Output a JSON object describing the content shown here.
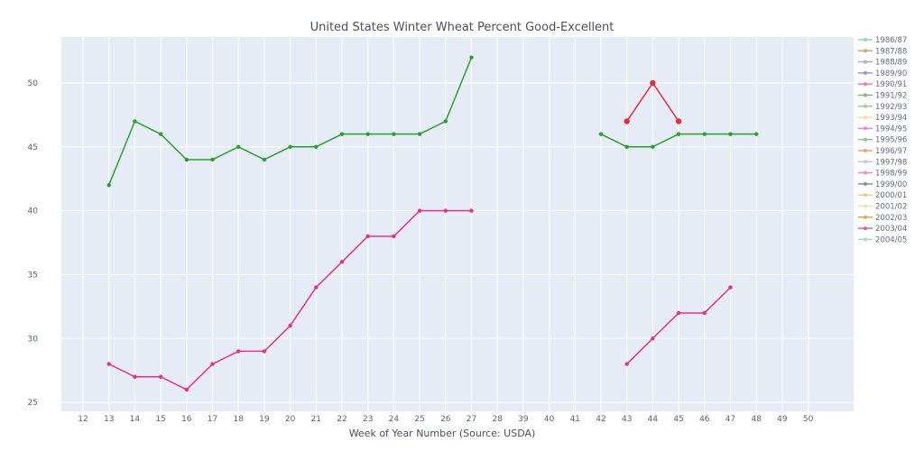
{
  "chart_data": {
    "type": "line",
    "title": "United States Winter Wheat Percent Good-Excellent",
    "xlabel": "Week of Year Number     (Source: USDA)",
    "ylabel": "",
    "x_categories": [
      "12",
      "13",
      "14",
      "15",
      "16",
      "17",
      "18",
      "19",
      "20",
      "21",
      "22",
      "23",
      "24",
      "25",
      "26",
      "27",
      "28",
      "39",
      "40",
      "41",
      "42",
      "43",
      "44",
      "45",
      "46",
      "47",
      "48",
      "49",
      "50"
    ],
    "ylim": [
      24.3,
      53.6
    ],
    "yticks": [
      25,
      30,
      35,
      40,
      45,
      50
    ],
    "grid": true,
    "legend": {
      "placement": "right",
      "entries": [
        {
          "name": "1986/87",
          "color": "#8fd3c8"
        },
        {
          "name": "1987/88",
          "color": "#d9a36b"
        },
        {
          "name": "1988/89",
          "color": "#b0a8d8"
        },
        {
          "name": "1989/90",
          "color": "#8f9bd0"
        },
        {
          "name": "1990/91",
          "color": "#e57aa8"
        },
        {
          "name": "1991/92",
          "color": "#7dbb6f"
        },
        {
          "name": "1992/93",
          "color": "#9ed08f"
        },
        {
          "name": "1993/94",
          "color": "#f3dfa2"
        },
        {
          "name": "1994/95",
          "color": "#d88ad8"
        },
        {
          "name": "1995/96",
          "color": "#88c888"
        },
        {
          "name": "1996/97",
          "color": "#f0a070"
        },
        {
          "name": "1997/98",
          "color": "#c9c0e8"
        },
        {
          "name": "1998/99",
          "color": "#e890c0"
        },
        {
          "name": "1999/00",
          "color": "#7f8fb8"
        },
        {
          "name": "2000/01",
          "color": "#f0c888"
        },
        {
          "name": "2001/02",
          "color": "#f0e0b0"
        },
        {
          "name": "2002/03",
          "color": "#d8a850"
        },
        {
          "name": "2003/04",
          "color": "#e06090"
        },
        {
          "name": "2004/05",
          "color": "#a8d8d0"
        }
      ]
    },
    "series": [
      {
        "name": "1991/92",
        "color": "#2ca02c",
        "points": [
          {
            "x": "13",
            "y": 42
          },
          {
            "x": "14",
            "y": 47
          },
          {
            "x": "15",
            "y": 46
          },
          {
            "x": "16",
            "y": 44
          },
          {
            "x": "17",
            "y": 44
          },
          {
            "x": "18",
            "y": 45
          },
          {
            "x": "19",
            "y": 44
          },
          {
            "x": "20",
            "y": 45
          },
          {
            "x": "21",
            "y": 45
          },
          {
            "x": "22",
            "y": 46
          },
          {
            "x": "23",
            "y": 46
          },
          {
            "x": "24",
            "y": 46
          },
          {
            "x": "25",
            "y": 46
          },
          {
            "x": "26",
            "y": 47
          },
          {
            "x": "27",
            "y": 52
          },
          {
            "x": "28",
            "y": null
          },
          {
            "x": "39",
            "y": null
          },
          {
            "x": "40",
            "y": null
          },
          {
            "x": "41",
            "y": null
          },
          {
            "x": "42",
            "y": 46
          },
          {
            "x": "43",
            "y": 45
          },
          {
            "x": "44",
            "y": 45
          },
          {
            "x": "45",
            "y": 46
          },
          {
            "x": "46",
            "y": 46
          },
          {
            "x": "47",
            "y": 46
          },
          {
            "x": "48",
            "y": 46
          }
        ],
        "marker_size": 2.2
      },
      {
        "name": "2003/04",
        "color": "#e8308a",
        "points": [
          {
            "x": "13",
            "y": 28
          },
          {
            "x": "14",
            "y": 27
          },
          {
            "x": "15",
            "y": 27
          },
          {
            "x": "16",
            "y": 26
          },
          {
            "x": "17",
            "y": 28
          },
          {
            "x": "18",
            "y": 29
          },
          {
            "x": "19",
            "y": 29
          },
          {
            "x": "20",
            "y": 31
          },
          {
            "x": "21",
            "y": 34
          },
          {
            "x": "22",
            "y": 36
          },
          {
            "x": "23",
            "y": 38
          },
          {
            "x": "24",
            "y": 38
          },
          {
            "x": "25",
            "y": 40
          },
          {
            "x": "26",
            "y": 40
          },
          {
            "x": "27",
            "y": 40
          },
          {
            "x": "28",
            "y": null
          },
          {
            "x": "39",
            "y": null
          },
          {
            "x": "40",
            "y": null
          },
          {
            "x": "41",
            "y": null
          },
          {
            "x": "42",
            "y": null
          },
          {
            "x": "43",
            "y": 28
          },
          {
            "x": "44",
            "y": 30
          },
          {
            "x": "45",
            "y": 32
          },
          {
            "x": "46",
            "y": 32
          },
          {
            "x": "47",
            "y": 34
          }
        ],
        "marker_size": 2.2
      },
      {
        "name": "",
        "color": "#ee2a3a",
        "points": [
          {
            "x": "43",
            "y": 47
          },
          {
            "x": "44",
            "y": 50
          },
          {
            "x": "45",
            "y": 47
          }
        ],
        "marker_size": 3.2
      }
    ]
  }
}
